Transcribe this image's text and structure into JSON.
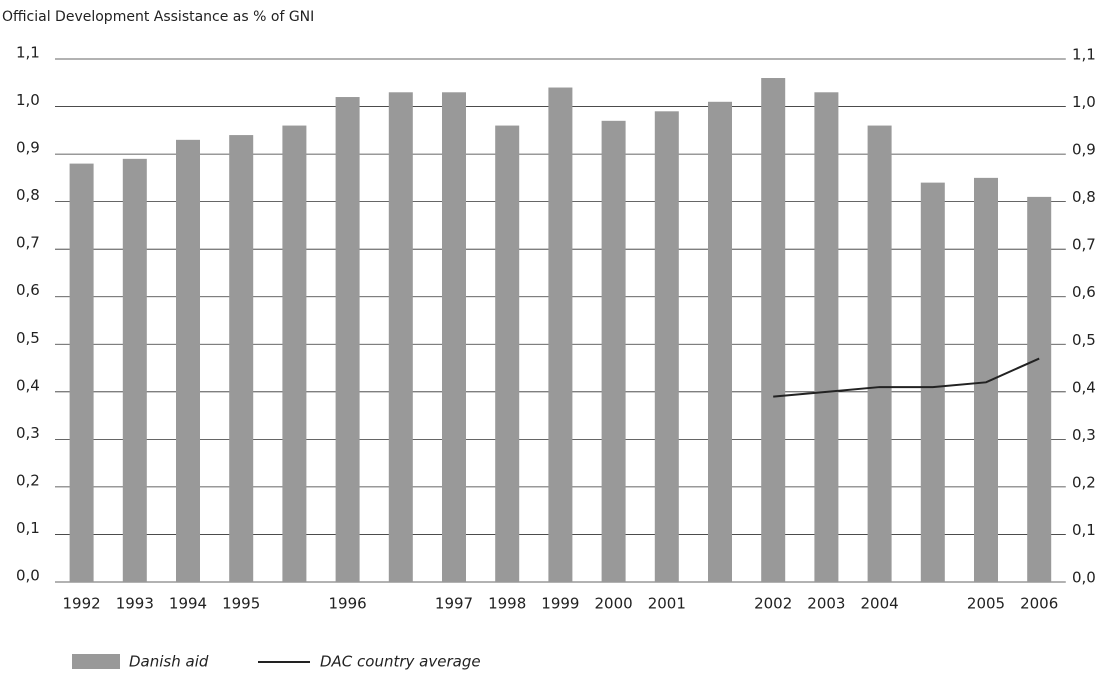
{
  "chart_data": {
    "type": "bar",
    "title": "Official Development Assistance as % of GNI",
    "categories": [
      "1992",
      "1993",
      "1994",
      "1995",
      null,
      "1996",
      null,
      "1997",
      "1998",
      "1999",
      "2000",
      "2001",
      null,
      "2002",
      "2003",
      "2004",
      null,
      "2005",
      "2006"
    ],
    "series": [
      {
        "name": "Danish aid",
        "type": "bar",
        "color": "#999999",
        "values": [
          0.88,
          0.89,
          0.93,
          0.94,
          0.96,
          1.02,
          1.03,
          1.03,
          0.96,
          1.04,
          0.97,
          0.99,
          1.01,
          1.06,
          1.03,
          0.96,
          0.84,
          0.85,
          0.81
        ]
      },
      {
        "name": "DAC country average",
        "type": "line",
        "color": "#222222",
        "values": [
          null,
          null,
          null,
          null,
          null,
          null,
          null,
          null,
          null,
          null,
          null,
          null,
          null,
          0.39,
          0.4,
          0.41,
          0.41,
          0.42,
          0.47
        ]
      }
    ],
    "ylim": [
      0,
      1.1
    ],
    "yticks": [
      {
        "value": 0,
        "label": "0,0"
      },
      {
        "value": 0.1,
        "label": "0,1"
      },
      {
        "value": 0.2,
        "label": "0,2"
      },
      {
        "value": 0.3,
        "label": "0,3"
      },
      {
        "value": 0.4,
        "label": "0,4"
      },
      {
        "value": 0.5,
        "label": "0,5"
      },
      {
        "value": 0.6,
        "label": "0,6"
      },
      {
        "value": 0.7,
        "label": "0,7"
      },
      {
        "value": 0.8,
        "label": "0,8"
      },
      {
        "value": 0.9,
        "label": "0,9"
      },
      {
        "value": 1.0,
        "label": "1,0"
      },
      {
        "value": 1.1,
        "label": "1,1"
      }
    ],
    "grid": true
  }
}
